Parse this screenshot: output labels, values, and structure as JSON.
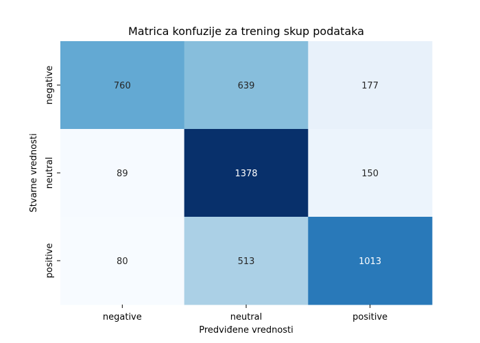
{
  "chart_data": {
    "type": "heatmap",
    "title": "Matrica konfuzije za trening skup podataka",
    "xlabel": "Predviđene vrednosti",
    "ylabel": "Stvarne vrednosti",
    "x_categories": [
      "negative",
      "neutral",
      "positive"
    ],
    "y_categories": [
      "negative",
      "neutral",
      "positive"
    ],
    "values": [
      [
        760,
        639,
        177
      ],
      [
        89,
        1378,
        150
      ],
      [
        80,
        513,
        1013
      ]
    ],
    "colormap": "Blues",
    "color_range": [
      80,
      1378
    ],
    "colorbar": false,
    "grid": false
  }
}
